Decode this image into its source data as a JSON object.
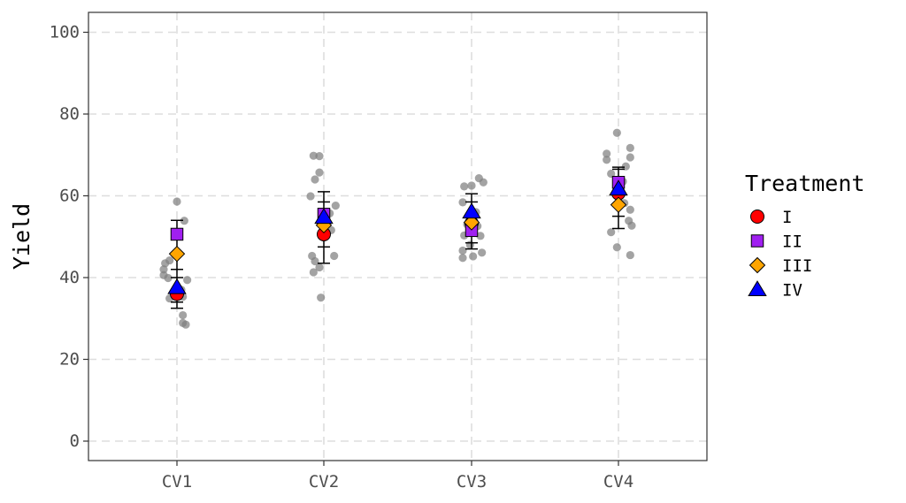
{
  "chart_data": {
    "type": "scatter",
    "title": "",
    "xlabel": "",
    "ylabel": "Yield",
    "ylim": [
      0,
      100
    ],
    "yticks": [
      0,
      20,
      40,
      60,
      80,
      100
    ],
    "categories": [
      "CV1",
      "CV2",
      "CV3",
      "CV4"
    ],
    "grid": true,
    "legend_placement": "right",
    "legend_title": "Treatment",
    "raw_color": "#7f7f7f",
    "raw_points": [
      {
        "category": "CV1",
        "jitter": -0.05,
        "y": 44.2
      },
      {
        "category": "CV1",
        "jitter": -0.08,
        "y": 43.5
      },
      {
        "category": "CV1",
        "jitter": -0.09,
        "y": 42.0
      },
      {
        "category": "CV1",
        "jitter": -0.09,
        "y": 40.6
      },
      {
        "category": "CV1",
        "jitter": -0.06,
        "y": 39.9
      },
      {
        "category": "CV1",
        "jitter": -0.05,
        "y": 34.9
      },
      {
        "category": "CV1",
        "jitter": 0.0,
        "y": 58.6
      },
      {
        "category": "CV1",
        "jitter": 0.05,
        "y": 53.9
      },
      {
        "category": "CV1",
        "jitter": -0.01,
        "y": 50.3
      },
      {
        "category": "CV1",
        "jitter": 0.07,
        "y": 39.4
      },
      {
        "category": "CV1",
        "jitter": 0.03,
        "y": 37.0
      },
      {
        "category": "CV1",
        "jitter": 0.04,
        "y": 35.3
      },
      {
        "category": "CV1",
        "jitter": 0.04,
        "y": 30.8
      },
      {
        "category": "CV1",
        "jitter": 0.04,
        "y": 28.9
      },
      {
        "category": "CV1",
        "jitter": 0.06,
        "y": 28.5
      },
      {
        "category": "CV2",
        "jitter": -0.07,
        "y": 69.8
      },
      {
        "category": "CV2",
        "jitter": -0.03,
        "y": 69.7
      },
      {
        "category": "CV2",
        "jitter": -0.03,
        "y": 65.7
      },
      {
        "category": "CV2",
        "jitter": -0.06,
        "y": 64.0
      },
      {
        "category": "CV2",
        "jitter": -0.09,
        "y": 59.9
      },
      {
        "category": "CV2",
        "jitter": 0.08,
        "y": 57.6
      },
      {
        "category": "CV2",
        "jitter": 0.04,
        "y": 55.7
      },
      {
        "category": "CV2",
        "jitter": -0.01,
        "y": 53.3
      },
      {
        "category": "CV2",
        "jitter": 0.05,
        "y": 51.6
      },
      {
        "category": "CV2",
        "jitter": -0.08,
        "y": 45.3
      },
      {
        "category": "CV2",
        "jitter": 0.07,
        "y": 45.3
      },
      {
        "category": "CV2",
        "jitter": -0.06,
        "y": 44.0
      },
      {
        "category": "CV2",
        "jitter": -0.03,
        "y": 42.5
      },
      {
        "category": "CV2",
        "jitter": -0.07,
        "y": 41.3
      },
      {
        "category": "CV2",
        "jitter": -0.02,
        "y": 35.1
      },
      {
        "category": "CV3",
        "jitter": 0.05,
        "y": 64.3
      },
      {
        "category": "CV3",
        "jitter": 0.08,
        "y": 63.3
      },
      {
        "category": "CV3",
        "jitter": -0.05,
        "y": 62.3
      },
      {
        "category": "CV3",
        "jitter": 0.0,
        "y": 62.5
      },
      {
        "category": "CV3",
        "jitter": -0.06,
        "y": 58.4
      },
      {
        "category": "CV3",
        "jitter": 0.03,
        "y": 56.0
      },
      {
        "category": "CV3",
        "jitter": -0.03,
        "y": 53.0
      },
      {
        "category": "CV3",
        "jitter": 0.04,
        "y": 52.6
      },
      {
        "category": "CV3",
        "jitter": -0.05,
        "y": 50.3
      },
      {
        "category": "CV3",
        "jitter": 0.06,
        "y": 50.2
      },
      {
        "category": "CV3",
        "jitter": -0.06,
        "y": 46.6
      },
      {
        "category": "CV3",
        "jitter": 0.07,
        "y": 46.1
      },
      {
        "category": "CV3",
        "jitter": -0.06,
        "y": 44.8
      },
      {
        "category": "CV3",
        "jitter": 0.01,
        "y": 45.2
      },
      {
        "category": "CV3",
        "jitter": -0.01,
        "y": 48.0
      },
      {
        "category": "CV4",
        "jitter": -0.01,
        "y": 75.4
      },
      {
        "category": "CV4",
        "jitter": 0.08,
        "y": 71.7
      },
      {
        "category": "CV4",
        "jitter": -0.08,
        "y": 70.3
      },
      {
        "category": "CV4",
        "jitter": 0.08,
        "y": 69.4
      },
      {
        "category": "CV4",
        "jitter": -0.08,
        "y": 68.8
      },
      {
        "category": "CV4",
        "jitter": 0.05,
        "y": 67.2
      },
      {
        "category": "CV4",
        "jitter": -0.05,
        "y": 65.4
      },
      {
        "category": "CV4",
        "jitter": 0.03,
        "y": 63.5
      },
      {
        "category": "CV4",
        "jitter": 0.04,
        "y": 58.2
      },
      {
        "category": "CV4",
        "jitter": 0.08,
        "y": 56.6
      },
      {
        "category": "CV4",
        "jitter": 0.07,
        "y": 53.9
      },
      {
        "category": "CV4",
        "jitter": 0.09,
        "y": 52.7
      },
      {
        "category": "CV4",
        "jitter": -0.05,
        "y": 51.1
      },
      {
        "category": "CV4",
        "jitter": -0.01,
        "y": 47.4
      },
      {
        "category": "CV4",
        "jitter": 0.08,
        "y": 45.5
      }
    ],
    "error_bars": [
      {
        "category": "CV1",
        "low": 32.5,
        "high": 54.0
      },
      {
        "category": "CV2",
        "low": 43.5,
        "high": 61.0
      },
      {
        "category": "CV3",
        "low": 47.0,
        "high": 60.5
      },
      {
        "category": "CV4",
        "low": 52.0,
        "high": 67.0
      }
    ],
    "error_bar_extra_caps": [
      {
        "category": "CV1",
        "values": [
          42.0,
          40.0,
          34.0
        ]
      },
      {
        "category": "CV2",
        "values": [
          58.5,
          47.5
        ]
      },
      {
        "category": "CV3",
        "values": [
          58.5,
          48.5
        ]
      },
      {
        "category": "CV4",
        "values": [
          66.5,
          55.0
        ]
      }
    ],
    "series": [
      {
        "name": "I",
        "shape": "circle",
        "color": "#ff0000",
        "values": [
          36.0,
          50.6,
          53.3,
          60.6
        ]
      },
      {
        "name": "II",
        "shape": "square",
        "color": "#a020f0",
        "values": [
          50.6,
          55.5,
          51.5,
          63.3
        ]
      },
      {
        "name": "III",
        "shape": "diamond",
        "color": "#ffa500",
        "values": [
          45.8,
          52.8,
          53.5,
          57.8
        ]
      },
      {
        "name": "IV",
        "shape": "triangle",
        "color": "#0000ff",
        "values": [
          37.6,
          54.8,
          56.1,
          61.7
        ]
      }
    ]
  }
}
